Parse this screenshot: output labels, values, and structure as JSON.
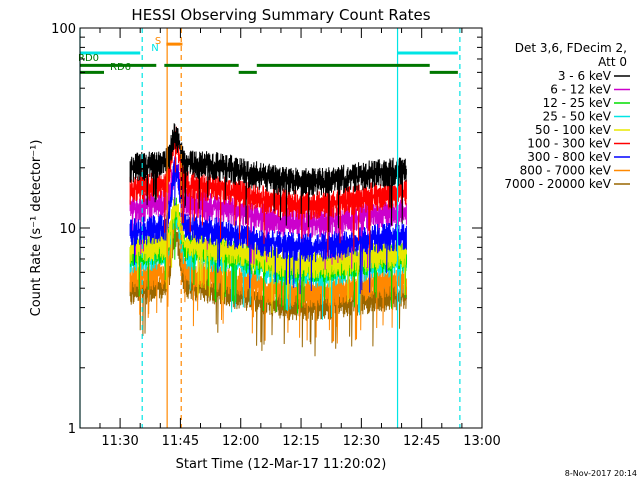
{
  "chart_data": {
    "type": "line",
    "title": "HESSI Observing Summary Count Rates",
    "xlabel": "Start Time (12-Mar-17 11:20:02)",
    "ylabel": "Count Rate (s⁻¹ detector⁻¹)",
    "y_scale": "log",
    "ylim": [
      1,
      100
    ],
    "y_ticks": [
      {
        "value": 1,
        "label": "1"
      },
      {
        "value": 10,
        "label": "10"
      },
      {
        "value": 100,
        "label": "100"
      }
    ],
    "x_ticks": [
      "11:30",
      "11:45",
      "12:00",
      "12:15",
      "12:30",
      "12:45",
      "13:00"
    ],
    "x_tick_minutes": [
      30,
      45,
      60,
      75,
      90,
      105,
      120
    ],
    "xlim_minutes": [
      20.03,
      120
    ],
    "data_window_minutes": [
      32.5,
      101.2
    ],
    "legend_header": [
      "Det 3,6, FDecim 2,",
      "Att 0"
    ],
    "series": [
      {
        "name": "3 - 6 keV",
        "color": "#000000",
        "base": 20,
        "peak": 28
      },
      {
        "name": "6 - 12 keV",
        "color": "#cc00cc",
        "base": 12.5,
        "peak": 19
      },
      {
        "name": "12 - 25 keV",
        "color": "#00dd00",
        "base": 7.5,
        "peak": 12
      },
      {
        "name": "25 - 50 keV",
        "color": "#00e5e5",
        "base": 7,
        "peak": 11
      },
      {
        "name": "50 - 100 keV",
        "color": "#e8e800",
        "base": 7.8,
        "peak": 12
      },
      {
        "name": "100 - 300 keV",
        "color": "#ff0000",
        "base": 15.5,
        "peak": 27
      },
      {
        "name": "300 - 800 keV",
        "color": "#0000ff",
        "base": 9.5,
        "peak": 19
      },
      {
        "name": "800 - 7000 keV",
        "color": "#ff8800",
        "base": 5.6,
        "peak": 11
      },
      {
        "name": "7000 - 20000 keV",
        "color": "#996600",
        "base": 4.8,
        "peak": 9
      }
    ],
    "flags": [
      {
        "label": "RD0",
        "color": "#007700",
        "y_value": 65,
        "segments": [
          [
            20.03,
            39
          ],
          [
            41,
            59.5
          ],
          [
            64,
            107
          ]
        ]
      },
      {
        "label": "RD6",
        "color": "#007700",
        "y_value": 60,
        "segments": [
          [
            20.03,
            26
          ],
          [
            59.5,
            64
          ],
          [
            107,
            114
          ]
        ]
      },
      {
        "label": "N",
        "color": "#00e5e5",
        "y_value": 75,
        "segments": [
          [
            20.03,
            35
          ],
          [
            99,
            114
          ]
        ]
      },
      {
        "label": "S",
        "color": "#ff8800",
        "y_value": 83,
        "segments": [
          [
            41.5,
            45.5
          ]
        ]
      }
    ],
    "vertical_markers": [
      {
        "minute": 20.03,
        "color": "#00e5e5",
        "style": "solid"
      },
      {
        "minute": 35.5,
        "color": "#00e5e5",
        "style": "dashed"
      },
      {
        "minute": 99,
        "color": "#00e5e5",
        "style": "solid"
      },
      {
        "minute": 114.5,
        "color": "#00e5e5",
        "style": "dashed"
      },
      {
        "minute": 41.7,
        "color": "#ff8800",
        "style": "solid"
      },
      {
        "minute": 45.2,
        "color": "#ff8800",
        "style": "dashed"
      }
    ],
    "flare_peak_minute": 43.8,
    "footer_timestamp": "8-Nov-2017 20:14"
  }
}
